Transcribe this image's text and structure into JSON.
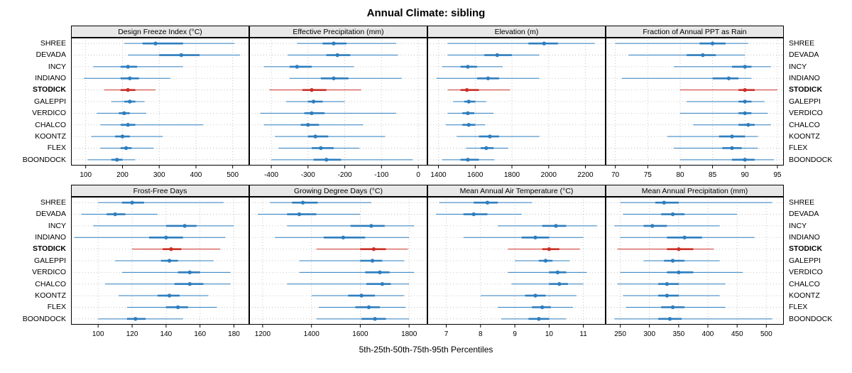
{
  "title": "Annual Climate: sibling",
  "caption": "5th-25th-50th-75th-95th Percentiles",
  "sites": [
    "SHREE",
    "DEVADA",
    "INCY",
    "INDIANO",
    "STODICK",
    "GALEPPI",
    "VERDICO",
    "CHALCO",
    "KOONTZ",
    "FLEX",
    "BOONDOCK"
  ],
  "highlight_site": "STODICK",
  "colors": {
    "normal": "#2e7ebe",
    "highlight": "#cb3027",
    "grid": "#b8b8b8",
    "strip_bg": "#e8e8e8"
  },
  "percentiles": [
    5,
    25,
    50,
    75,
    95
  ],
  "chart_data": [
    {
      "type": "interval",
      "title": "Design Freeze Index (°C)",
      "xlim": [
        60,
        545
      ],
      "ticks": [
        100,
        200,
        300,
        400,
        500
      ],
      "values": [
        [
          205,
          255,
          290,
          365,
          505
        ],
        [
          215,
          300,
          360,
          410,
          520
        ],
        [
          120,
          195,
          215,
          240,
          365
        ],
        [
          95,
          195,
          220,
          245,
          330
        ],
        [
          150,
          195,
          215,
          235,
          290
        ],
        [
          170,
          205,
          220,
          235,
          260
        ],
        [
          130,
          190,
          205,
          220,
          265
        ],
        [
          140,
          195,
          215,
          235,
          420
        ],
        [
          115,
          180,
          200,
          220,
          310
        ],
        [
          140,
          195,
          210,
          225,
          285
        ],
        [
          105,
          170,
          185,
          200,
          235
        ]
      ]
    },
    {
      "type": "interval",
      "title": "Effective Precipitation (mm)",
      "xlim": [
        -460,
        25
      ],
      "ticks": [
        -400,
        -300,
        -200,
        -100,
        0
      ],
      "values": [
        [
          -330,
          -260,
          -230,
          -195,
          -60
        ],
        [
          -355,
          -250,
          -220,
          -185,
          -55
        ],
        [
          -420,
          -350,
          -330,
          -290,
          -175
        ],
        [
          -350,
          -265,
          -230,
          -190,
          -45
        ],
        [
          -405,
          -315,
          -290,
          -250,
          -155
        ],
        [
          -360,
          -300,
          -285,
          -260,
          -200
        ],
        [
          -430,
          -310,
          -290,
          -255,
          -60
        ],
        [
          -420,
          -320,
          -300,
          -270,
          -150
        ],
        [
          -390,
          -300,
          -280,
          -245,
          -90
        ],
        [
          -380,
          -290,
          -265,
          -230,
          -160
        ],
        [
          -400,
          -285,
          -250,
          -210,
          -15
        ]
      ]
    },
    {
      "type": "interval",
      "title": "Elevation (m)",
      "xlim": [
        1340,
        2310
      ],
      "ticks": [
        1400,
        1600,
        1800,
        2000,
        2200
      ],
      "values": [
        [
          1450,
          1890,
          1975,
          2050,
          2250
        ],
        [
          1450,
          1650,
          1720,
          1800,
          1950
        ],
        [
          1420,
          1520,
          1560,
          1610,
          1750
        ],
        [
          1390,
          1610,
          1670,
          1730,
          1950
        ],
        [
          1450,
          1520,
          1555,
          1620,
          1790
        ],
        [
          1480,
          1540,
          1565,
          1600,
          1660
        ],
        [
          1450,
          1530,
          1560,
          1595,
          1700
        ],
        [
          1440,
          1530,
          1565,
          1600,
          1655
        ],
        [
          1500,
          1620,
          1680,
          1730,
          1950
        ],
        [
          1550,
          1630,
          1660,
          1700,
          1780
        ],
        [
          1420,
          1520,
          1560,
          1620,
          1705
        ]
      ]
    },
    {
      "type": "interval",
      "title": "Fraction of Annual PPT as Rain",
      "xlim": [
        68.5,
        96
      ],
      "ticks": [
        70,
        75,
        80,
        85,
        90,
        95
      ],
      "values": [
        [
          70,
          83,
          85,
          87,
          90.5
        ],
        [
          72,
          81,
          83.5,
          85.5,
          90
        ],
        [
          79,
          88,
          90,
          91,
          94
        ],
        [
          71,
          85,
          87.5,
          89,
          91
        ],
        [
          80,
          89,
          90,
          91.5,
          95
        ],
        [
          81,
          89,
          90,
          91,
          93
        ],
        [
          80,
          89,
          90,
          91,
          93.5
        ],
        [
          82,
          89,
          90.5,
          91.5,
          94
        ],
        [
          78,
          86,
          88,
          90,
          92
        ],
        [
          79,
          86.5,
          88,
          89.5,
          92
        ],
        [
          80,
          88,
          90,
          91.5,
          94.5
        ]
      ]
    },
    {
      "type": "interval",
      "title": "Frost-Free Days",
      "xlim": [
        84,
        189
      ],
      "ticks": [
        100,
        120,
        140,
        160,
        180
      ],
      "values": [
        [
          100,
          114,
          120,
          127,
          174
        ],
        [
          90,
          105,
          110,
          116,
          135
        ],
        [
          97,
          140,
          151,
          158,
          180
        ],
        [
          86,
          130,
          140,
          150,
          175
        ],
        [
          120,
          138,
          143,
          149,
          172
        ],
        [
          110,
          137,
          142,
          147,
          168
        ],
        [
          114,
          147,
          154,
          160,
          178
        ],
        [
          104,
          145,
          154,
          162,
          178
        ],
        [
          112,
          135,
          142,
          148,
          165
        ],
        [
          117,
          140,
          147,
          153,
          170
        ],
        [
          100,
          117,
          122,
          128,
          150
        ]
      ]
    },
    {
      "type": "interval",
      "title": "Growing Degree Days (°C)",
      "xlim": [
        1145,
        1875
      ],
      "ticks": [
        1200,
        1400,
        1600,
        1800
      ],
      "values": [
        [
          1230,
          1320,
          1365,
          1425,
          1645
        ],
        [
          1180,
          1300,
          1350,
          1420,
          1600
        ],
        [
          1300,
          1560,
          1645,
          1700,
          1820
        ],
        [
          1250,
          1450,
          1530,
          1620,
          1800
        ],
        [
          1420,
          1600,
          1655,
          1705,
          1795
        ],
        [
          1350,
          1600,
          1650,
          1690,
          1780
        ],
        [
          1350,
          1620,
          1680,
          1720,
          1820
        ],
        [
          1300,
          1625,
          1690,
          1725,
          1800
        ],
        [
          1400,
          1550,
          1605,
          1660,
          1780
        ],
        [
          1430,
          1580,
          1635,
          1680,
          1785
        ],
        [
          1420,
          1605,
          1660,
          1705,
          1800
        ]
      ]
    },
    {
      "type": "interval",
      "title": "Mean Annual Air Temperature (°C)",
      "xlim": [
        6.45,
        11.65
      ],
      "ticks": [
        7,
        8,
        9,
        10,
        11
      ],
      "values": [
        [
          6.8,
          7.8,
          8.2,
          8.5,
          9.5
        ],
        [
          6.7,
          7.5,
          7.8,
          8.2,
          9.2
        ],
        [
          8.5,
          9.8,
          10.2,
          10.5,
          11.4
        ],
        [
          7.5,
          9.2,
          9.6,
          10.0,
          11.0
        ],
        [
          8.8,
          9.8,
          10.0,
          10.3,
          10.9
        ],
        [
          9.0,
          9.7,
          9.9,
          10.1,
          10.6
        ],
        [
          8.8,
          10.0,
          10.25,
          10.5,
          11.1
        ],
        [
          8.9,
          10.0,
          10.3,
          10.55,
          11.0
        ],
        [
          8.0,
          9.3,
          9.6,
          9.9,
          10.8
        ],
        [
          8.5,
          9.5,
          9.8,
          10.05,
          10.7
        ],
        [
          8.6,
          9.4,
          9.7,
          10.0,
          10.5
        ]
      ]
    },
    {
      "type": "interval",
      "title": "Mean Annual Precipitation (mm)",
      "xlim": [
        225,
        530
      ],
      "ticks": [
        250,
        300,
        350,
        400,
        450,
        500
      ],
      "values": [
        [
          250,
          310,
          325,
          350,
          510
        ],
        [
          255,
          320,
          340,
          360,
          450
        ],
        [
          240,
          290,
          305,
          330,
          420
        ],
        [
          250,
          330,
          360,
          390,
          480
        ],
        [
          245,
          330,
          350,
          375,
          410
        ],
        [
          290,
          325,
          340,
          360,
          420
        ],
        [
          250,
          330,
          350,
          375,
          460
        ],
        [
          245,
          315,
          330,
          350,
          430
        ],
        [
          255,
          315,
          330,
          350,
          420
        ],
        [
          260,
          320,
          340,
          360,
          430
        ],
        [
          240,
          315,
          335,
          355,
          510
        ]
      ]
    }
  ]
}
